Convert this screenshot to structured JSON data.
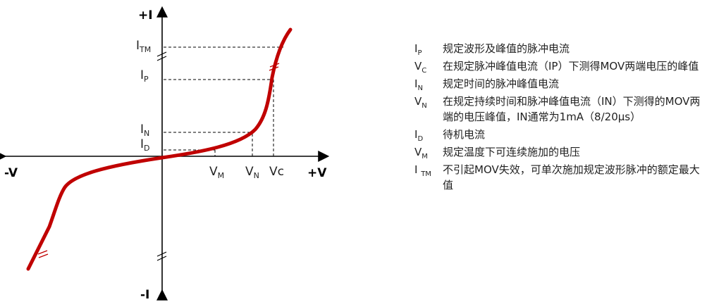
{
  "axes": {
    "pos_current": "+I",
    "neg_current": "-I",
    "pos_voltage": "+V",
    "neg_voltage": "-V"
  },
  "y_labels": [
    {
      "main": "I",
      "sub": "TM"
    },
    {
      "main": "I",
      "sub": "P"
    },
    {
      "main": "I",
      "sub": "N"
    },
    {
      "main": "I",
      "sub": "D"
    }
  ],
  "x_labels": [
    {
      "main": "V",
      "sub": "M"
    },
    {
      "main": "V",
      "sub": "N"
    },
    {
      "main": "Vc",
      "sub": ""
    }
  ],
  "legend": [
    {
      "sym": "I",
      "sub": "P",
      "text": "规定波形及峰值的脉冲电流"
    },
    {
      "sym": "V",
      "sub": "C",
      "text": "在规定脉冲峰值电流（IP）下测得MOV两端电压的峰值"
    },
    {
      "sym": "I",
      "sub": "N",
      "text": "规定时间的脉冲峰值电流"
    },
    {
      "sym": "V",
      "sub": "N",
      "text": "在规定持续时间和脉冲峰值电流（IN）下测得的MOV两端的电压峰值，IN通常为1mA（8/20μs）"
    },
    {
      "sym": "I",
      "sub": "D",
      "text": "待机电流"
    },
    {
      "sym": "V",
      "sub": "M",
      "text": "规定温度下可连续施加的电压"
    },
    {
      "sym": "I ",
      "sub": "TM",
      "text": "不引起MOV失效，可单次施加规定波形脉冲的额定最大值"
    }
  ],
  "colors": {
    "curve": "#c00000",
    "axis": "#000000",
    "text": "#222222"
  }
}
